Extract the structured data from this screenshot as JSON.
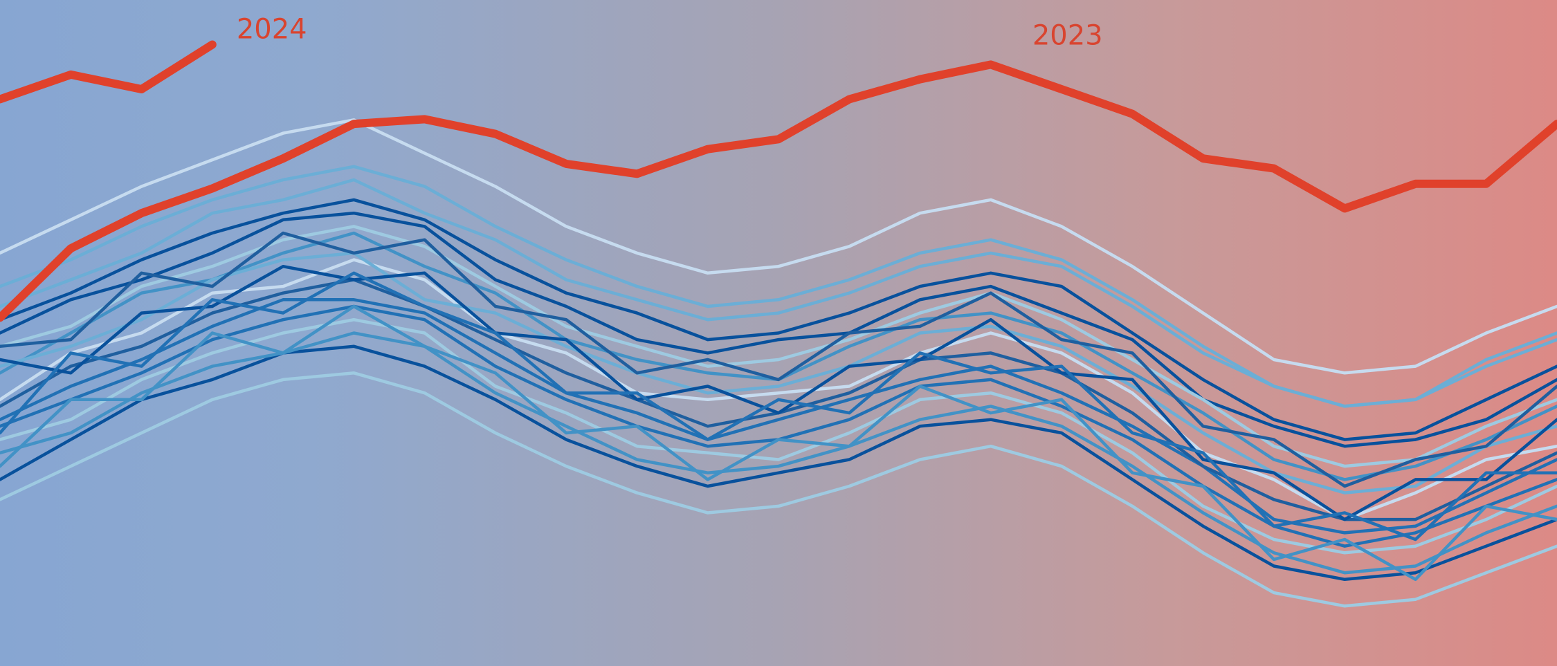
{
  "chart_data": {
    "type": "line",
    "ylim": [
      0,
      100
    ],
    "series": [
      {
        "color": "#6baed6",
        "values": [
          54,
          58,
          62,
          68,
          70,
          73,
          68,
          64,
          58,
          55,
          52,
          53,
          56,
          60,
          62,
          60,
          54,
          47,
          42,
          39,
          40,
          46,
          50
        ]
      },
      {
        "color": "#08519c",
        "values": [
          50,
          55,
          58,
          62,
          67,
          68,
          66,
          58,
          54,
          49,
          47,
          49,
          50,
          55,
          57,
          53,
          49,
          40,
          36,
          33,
          34,
          37,
          43
        ]
      },
      {
        "color": "#4292c6",
        "values": [
          44,
          50,
          56,
          58,
          62,
          65,
          60,
          56,
          49,
          46,
          44,
          43,
          48,
          52,
          53,
          50,
          44,
          38,
          31,
          28,
          30,
          34,
          39
        ]
      },
      {
        "color": "#c6dbef",
        "values": [
          40,
          47,
          50,
          56,
          57,
          61,
          58,
          50,
          47,
          41,
          40,
          41,
          42,
          47,
          50,
          47,
          41,
          32,
          28,
          22,
          26,
          31,
          33
        ]
      },
      {
        "color": "#2171b5",
        "values": [
          37,
          42,
          46,
          51,
          55,
          55,
          53,
          47,
          41,
          38,
          34,
          37,
          40,
          43,
          45,
          41,
          36,
          30,
          22,
          20,
          21,
          26,
          31
        ]
      },
      {
        "color": "#9ecae1",
        "values": [
          34,
          37,
          43,
          47,
          50,
          52,
          50,
          42,
          38,
          33,
          32,
          31,
          35,
          40,
          41,
          38,
          32,
          24,
          19,
          17,
          18,
          22,
          27
        ]
      },
      {
        "color": "#08519c",
        "values": [
          28,
          34,
          40,
          43,
          47,
          48,
          45,
          40,
          34,
          30,
          27,
          29,
          31,
          36,
          37,
          35,
          28,
          21,
          15,
          13,
          14,
          18,
          22
        ]
      },
      {
        "color": "#6baed6",
        "values": [
          45,
          48,
          52,
          58,
          61,
          62,
          55,
          53,
          48,
          44,
          41,
          42,
          45,
          50,
          51,
          48,
          42,
          35,
          29,
          26,
          27,
          33,
          36
        ]
      },
      {
        "color": "#1f5f9f",
        "values": [
          39,
          45,
          48,
          53,
          56,
          58,
          54,
          49,
          44,
          40,
          36,
          38,
          41,
          46,
          47,
          44,
          38,
          30,
          25,
          22,
          22,
          27,
          32
        ]
      },
      {
        "color": "#9ecae1",
        "values": [
          48,
          51,
          57,
          60,
          64,
          66,
          63,
          57,
          51,
          48,
          45,
          46,
          49,
          53,
          56,
          52,
          46,
          40,
          33,
          30,
          31,
          36,
          40
        ]
      },
      {
        "color": "#2171b5",
        "values": [
          36,
          40,
          44,
          49,
          52,
          54,
          52,
          45,
          40,
          36,
          33,
          34,
          37,
          42,
          43,
          39,
          34,
          27,
          21,
          18,
          20,
          24,
          28
        ]
      },
      {
        "color": "#08519c",
        "values": [
          52,
          56,
          61,
          65,
          68,
          70,
          67,
          61,
          56,
          53,
          49,
          50,
          53,
          57,
          59,
          57,
          50,
          43,
          37,
          34,
          35,
          40,
          45
        ]
      },
      {
        "color": "#4292c6",
        "values": [
          32,
          35,
          41,
          45,
          47,
          50,
          48,
          41,
          36,
          31,
          29,
          30,
          33,
          37,
          39,
          36,
          30,
          23,
          17,
          14,
          15,
          20,
          24
        ]
      },
      {
        "color": "#6baed6",
        "values": [
          57,
          61,
          66,
          70,
          73,
          75,
          72,
          66,
          61,
          57,
          54,
          55,
          58,
          62,
          64,
          61,
          55,
          48,
          42,
          39,
          40,
          45,
          49
        ]
      },
      {
        "color": "#c6dbef",
        "values": [
          62,
          67,
          72,
          76,
          80,
          82,
          77,
          72,
          66,
          62,
          59,
          60,
          63,
          68,
          70,
          66,
          60,
          53,
          46,
          44,
          45,
          50,
          54
        ]
      },
      {
        "color": "#9ecae1",
        "values": [
          25,
          30,
          35,
          40,
          43,
          44,
          41,
          35,
          30,
          26,
          23,
          24,
          27,
          31,
          33,
          30,
          24,
          17,
          11,
          9,
          10,
          14,
          18
        ]
      },
      {
        "color": "#08519c",
        "values": [
          46,
          44,
          53,
          54,
          60,
          58,
          59,
          50,
          49,
          40,
          42,
          38,
          45,
          46,
          52,
          44,
          43,
          31,
          29,
          22,
          28,
          28,
          37
        ]
      },
      {
        "color": "#2171b5",
        "values": [
          35,
          47,
          45,
          55,
          53,
          59,
          54,
          50,
          41,
          41,
          34,
          40,
          38,
          47,
          44,
          45,
          35,
          32,
          21,
          23,
          19,
          29,
          29
        ]
      },
      {
        "color": "#1f5f9f",
        "values": [
          48,
          49,
          59,
          57,
          65,
          62,
          64,
          54,
          52,
          44,
          46,
          43,
          50,
          51,
          56,
          49,
          47,
          36,
          34,
          27,
          31,
          33,
          42
        ]
      },
      {
        "color": "#4292c6",
        "values": [
          30,
          40,
          40,
          50,
          47,
          54,
          48,
          44,
          35,
          36,
          28,
          34,
          33,
          42,
          38,
          40,
          29,
          27,
          16,
          19,
          13,
          24,
          22
        ]
      },
      {
        "name": "2023",
        "color": "#e0412b",
        "values": [
          52.3,
          62.7,
          68.0,
          71.7,
          76.2,
          81.4,
          82.1,
          79.9,
          75.4,
          73.9,
          77.6,
          79.1,
          85.1,
          88.1,
          90.3,
          86.6,
          82.9,
          76.2,
          74.7,
          68.7,
          72.4,
          72.4,
          81.4
        ]
      },
      {
        "name": "2024",
        "color": "#e0412b",
        "values": [
          85.1,
          88.8,
          86.6,
          93.3,
          null,
          null,
          null,
          null,
          null,
          null,
          null,
          null,
          null,
          null,
          null,
          null,
          null,
          null,
          null,
          null,
          null,
          null,
          null
        ]
      }
    ]
  }
}
